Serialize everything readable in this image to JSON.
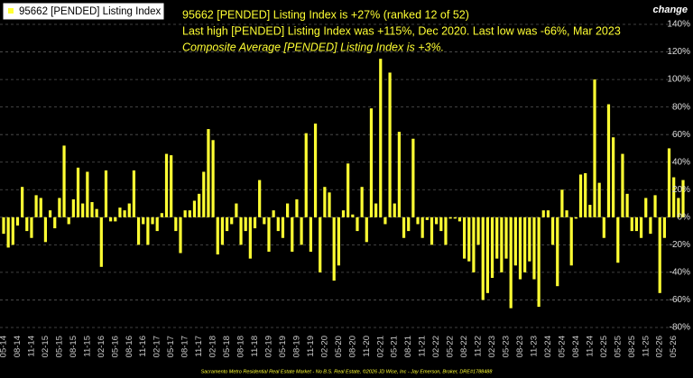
{
  "chart_data": {
    "type": "bar",
    "annotations": [
      "95662 [PENDED] Listing Index is +27% (ranked 12 of 52)",
      "Last high [PENDED] Listing Index was +115%, Dec 2020. Last low was -66%, Mar 2023",
      "Composite Average [PENDED] Listing Index is +3%."
    ],
    "y_axis_label": "change",
    "footer": "Sacramento Metro Residential Real Estate Market - No B.S. Real Estate, ©2026 JD Wise, Inc - Jay Emerson, Broker, DRE#1788488",
    "categories": [
      "05-14",
      null,
      null,
      "08-14",
      null,
      null,
      "11-14",
      null,
      null,
      "02-15",
      null,
      null,
      "05-15",
      null,
      null,
      "08-15",
      null,
      null,
      "11-15",
      null,
      null,
      "02-16",
      null,
      null,
      "05-16",
      null,
      null,
      "08-16",
      null,
      null,
      "11-16",
      null,
      null,
      "02-17",
      null,
      null,
      "05-17",
      null,
      null,
      "08-17",
      null,
      null,
      "11-17",
      null,
      null,
      "02-18",
      null,
      null,
      "05-18",
      null,
      null,
      "08-18",
      null,
      null,
      "11-18",
      null,
      null,
      "02-19",
      null,
      null,
      "05-19",
      null,
      null,
      "08-19",
      null,
      null,
      "11-19",
      null,
      null,
      "02-20",
      null,
      null,
      "05-20",
      null,
      null,
      "08-20",
      null,
      null,
      "11-20",
      null,
      null,
      "02-21",
      null,
      null,
      "05-21",
      null,
      null,
      "08-21",
      null,
      null,
      "11-21",
      null,
      null,
      "02-22",
      null,
      null,
      "05-22",
      null,
      null,
      "08-22",
      null,
      null,
      "11-22",
      null,
      null,
      "02-23",
      null,
      null,
      "05-23",
      null,
      null,
      "08-23",
      null,
      null,
      "11-23",
      null,
      null,
      "02-24",
      null,
      null,
      "05-24",
      null,
      null,
      "08-24",
      null,
      null,
      "11-24",
      null,
      null,
      "02-25",
      null,
      null,
      "05-25",
      null,
      null,
      "08-25",
      null,
      null,
      "11-25",
      null,
      null,
      "02-26",
      null,
      null,
      "05-26",
      null,
      null
    ],
    "series": [
      {
        "name": "95662 [PENDED] Listing Index",
        "color": "#ffff33",
        "values": [
          -12,
          -22,
          -20,
          -6,
          22,
          -10,
          -15,
          16,
          14,
          -18,
          5,
          -8,
          14,
          52,
          -5,
          13,
          36,
          10,
          33,
          11,
          6,
          -36,
          34,
          -3,
          -3,
          7,
          5,
          10,
          34,
          -20,
          -5,
          -20,
          -5,
          -10,
          3,
          46,
          45,
          -10,
          -26,
          5,
          5,
          12,
          17,
          33,
          64,
          56,
          -27,
          -20,
          -10,
          -5,
          10,
          -20,
          -10,
          -30,
          -8,
          27,
          -5,
          -25,
          5,
          -10,
          -15,
          10,
          -25,
          13,
          -20,
          61,
          -25,
          68,
          -40,
          22,
          18,
          -46,
          -35,
          5,
          39,
          2,
          -10,
          22,
          -18,
          79,
          10,
          115,
          -5,
          105,
          10,
          62,
          -15,
          -10,
          57,
          -5,
          -15,
          -2,
          -20,
          -5,
          -10,
          -20,
          -1,
          -1,
          -3,
          -30,
          -32,
          -40,
          -20,
          -60,
          -55,
          -44,
          -30,
          -40,
          -30,
          -66,
          -35,
          -45,
          -40,
          -32,
          -45,
          -65,
          5,
          5,
          -20,
          -50,
          20,
          5,
          -35,
          -1,
          31,
          32,
          9,
          100,
          25,
          -15,
          82,
          58,
          -33,
          46,
          17,
          -10,
          -10,
          -15,
          14,
          -12,
          16,
          -55,
          -15,
          50,
          29,
          14,
          27
        ]
      }
    ],
    "ylim": [
      -80,
      140
    ],
    "yticks": [
      {
        "value": 140,
        "label": "140%"
      },
      {
        "value": 120,
        "label": "120%"
      },
      {
        "value": 100,
        "label": "100%"
      },
      {
        "value": 80,
        "label": "80%"
      },
      {
        "value": 60,
        "label": "60%"
      },
      {
        "value": 40,
        "label": "40%"
      },
      {
        "value": 20,
        "label": "20%"
      },
      {
        "value": 0,
        "label": "0%"
      },
      {
        "value": -20,
        "label": "-20%"
      },
      {
        "value": -40,
        "label": "-40%"
      },
      {
        "value": -60,
        "label": "-60%"
      },
      {
        "value": -80,
        "label": "-80%"
      }
    ],
    "grid": true
  }
}
